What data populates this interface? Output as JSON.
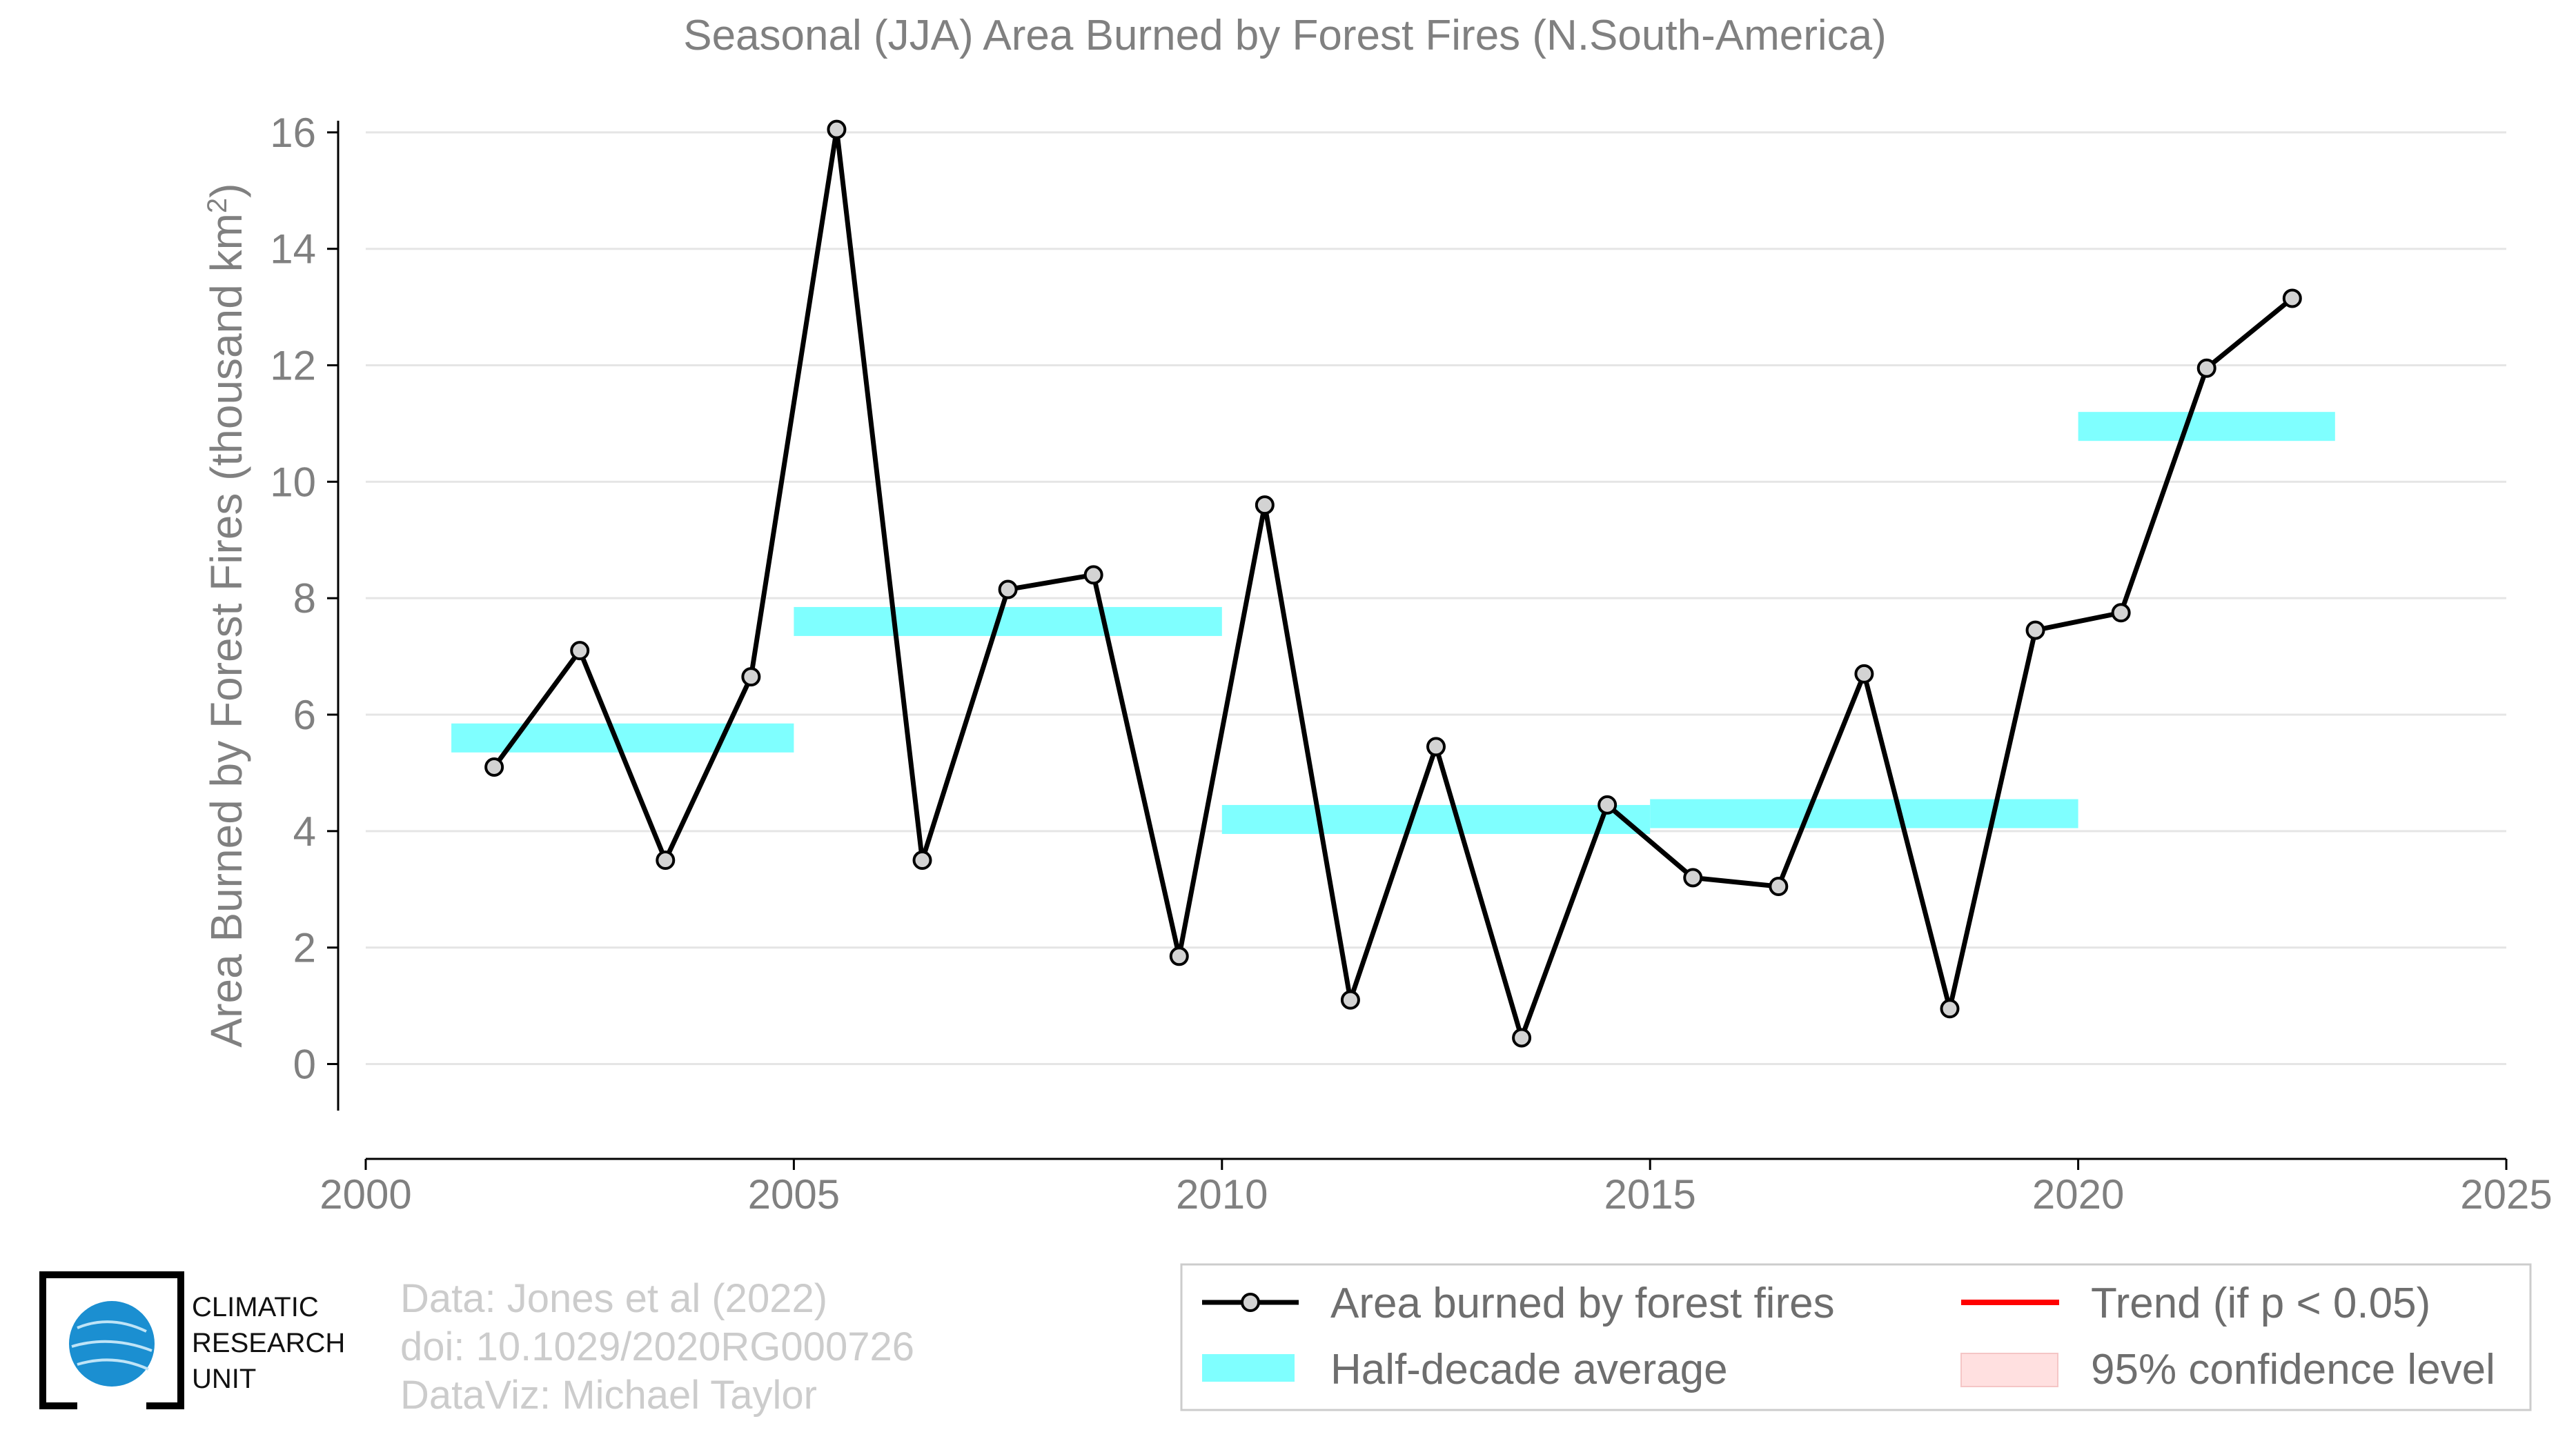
{
  "chart_data": {
    "type": "line",
    "title": "Seasonal (JJA) Area Burned by Forest Fires (N.South-America)",
    "xlabel": "",
    "ylabel_main": "Area Burned by Forest Fires (thousand km",
    "ylabel_sup": "2",
    "ylabel_close": ")",
    "xlim": [
      2000,
      2025
    ],
    "ylim": [
      -0.8,
      16.2
    ],
    "x_ticks": [
      "2000",
      "2005",
      "2010",
      "2015",
      "2020",
      "2025"
    ],
    "x_tick_values": [
      2000,
      2005,
      2010,
      2015,
      2020,
      2025
    ],
    "y_ticks": [
      "0",
      "2",
      "4",
      "6",
      "8",
      "10",
      "12",
      "14",
      "16"
    ],
    "y_tick_values": [
      0,
      2,
      4,
      6,
      8,
      10,
      12,
      14,
      16
    ],
    "grid": true,
    "series": [
      {
        "name": "Area burned by forest fires",
        "color": "#000000",
        "marker_fill": "#d3d3d3",
        "x": [
          2001.5,
          2002.5,
          2003.5,
          2004.5,
          2005.5,
          2006.5,
          2007.5,
          2008.5,
          2009.5,
          2010.5,
          2011.5,
          2012.5,
          2013.5,
          2014.5,
          2015.5,
          2016.5,
          2017.5,
          2018.5,
          2019.5,
          2020.5,
          2021.5,
          2022.5
        ],
        "values": [
          5.1,
          7.1,
          3.5,
          6.65,
          16.05,
          3.5,
          8.15,
          8.4,
          1.85,
          9.6,
          1.1,
          5.45,
          0.45,
          4.45,
          3.2,
          3.05,
          6.7,
          0.95,
          7.45,
          7.75,
          11.95,
          13.15
        ]
      }
    ],
    "half_decade_average": {
      "name": "Half-decade average",
      "color": "#7fffff",
      "segments": [
        {
          "x_start": 2001,
          "x_end": 2005,
          "value": 5.6
        },
        {
          "x_start": 2005,
          "x_end": 2010,
          "value": 7.6
        },
        {
          "x_start": 2010,
          "x_end": 2015,
          "value": 4.2
        },
        {
          "x_start": 2015,
          "x_end": 2020,
          "value": 4.3
        },
        {
          "x_start": 2020,
          "x_end": 2023,
          "value": 10.95
        }
      ]
    },
    "legend": {
      "placement": "bottom-right",
      "items": [
        {
          "label": "Area burned by forest fires",
          "kind": "line-marker",
          "color": "#000000"
        },
        {
          "label": "Trend (if p < 0.05)",
          "kind": "line",
          "color": "#ff0000"
        },
        {
          "label": "Half-decade average",
          "kind": "patch",
          "color": "#7fffff"
        },
        {
          "label": "95% confidence level",
          "kind": "patch",
          "color": "#ffe0e0"
        }
      ]
    }
  },
  "credits": [
    "Data: Jones et al (2022)",
    "doi: 10.1029/2020RG000726",
    "DataViz: Michael Taylor"
  ],
  "logo": {
    "lines": [
      "CLIMATIC",
      "RESEARCH",
      "UNIT"
    ],
    "globe_color": "#1b8fd1"
  }
}
